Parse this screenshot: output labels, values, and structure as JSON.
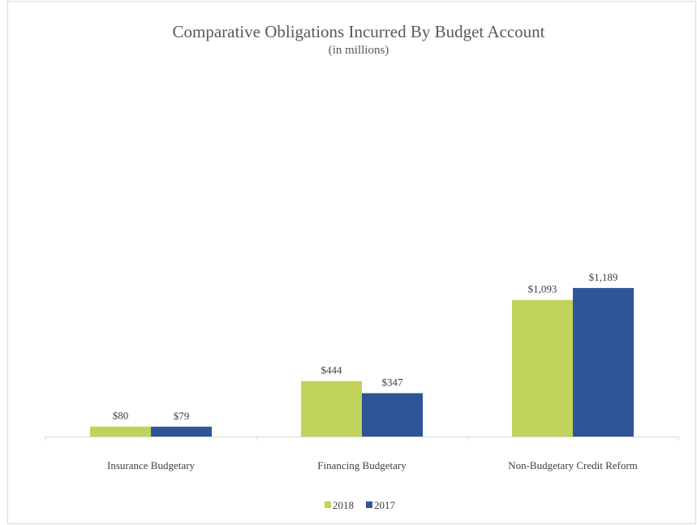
{
  "chart_data": {
    "type": "bar",
    "title": "Comparative Obligations Incurred By Budget Account",
    "subtitle": "(in millions)",
    "xlabel": "",
    "ylabel": "",
    "categories": [
      "Insurance Budgetary",
      "Financing Budgetary",
      "Non-Budgetary Credit Reform"
    ],
    "series": [
      {
        "name": "2018",
        "values": [
          80,
          444,
          1093
        ],
        "labels": [
          "$80",
          "$444",
          "$1,093"
        ],
        "color": "#c0d35a"
      },
      {
        "name": "2017",
        "values": [
          79,
          347,
          1189
        ],
        "labels": [
          "$79",
          "$347",
          "$1,189"
        ],
        "color": "#2e5597"
      }
    ],
    "ylim": [
      0,
      1400
    ],
    "grid": false,
    "legend": "bottom"
  }
}
